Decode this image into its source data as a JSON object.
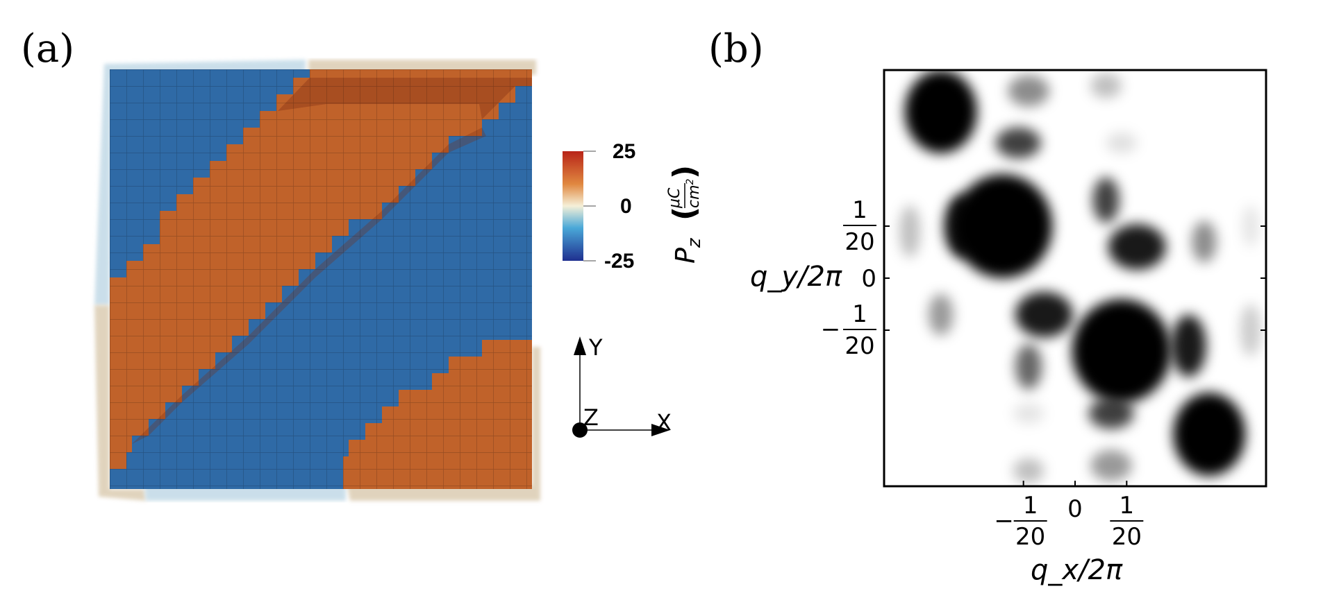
{
  "panel_a": {
    "label": "(a)",
    "colorbar": {
      "max_label": "25",
      "mid_label": "0",
      "min_label": "-25",
      "quantity_label": "P",
      "quantity_sub": "z",
      "unit_num": "μC",
      "unit_den": "cm",
      "unit_den_sup": "2",
      "colors": [
        "#1f2f8f",
        "#4aa8d8",
        "#f5f0d8",
        "#e08840",
        "#b82418"
      ]
    },
    "domain_colors": {
      "up": "#c0622a",
      "down": "#2f6aa6",
      "wall_light": "#d9c9ad",
      "wall_blue": "#b9d4e3"
    },
    "axes_triad": {
      "y": "Y",
      "x": "X",
      "z": "Z"
    }
  },
  "panel_b": {
    "label": "(b)",
    "chart_data": {
      "type": "heatmap",
      "title": "",
      "xlabel": "q_x/2π",
      "ylabel": "q_y/2π",
      "x_ticks": [
        {
          "value": -0.05,
          "num": "1",
          "den": "20",
          "sign": "−"
        },
        {
          "value": 0,
          "text": "0"
        },
        {
          "value": 0.05,
          "num": "1",
          "den": "20",
          "sign": ""
        }
      ],
      "y_ticks": [
        {
          "value": 0.05,
          "num": "1",
          "den": "20",
          "sign": ""
        },
        {
          "value": 0,
          "text": "0"
        },
        {
          "value": -0.05,
          "num": "1",
          "den": "20",
          "sign": "−"
        }
      ],
      "xlim": [
        -0.185,
        0.185
      ],
      "ylim": [
        -0.2,
        0.2
      ],
      "colormap": "gray_r",
      "peaks": [
        {
          "x": -0.13,
          "y": 0.16,
          "intensity": 1.0,
          "rx": 0.035,
          "ry": 0.04
        },
        {
          "x": -0.045,
          "y": 0.18,
          "intensity": 0.45,
          "rx": 0.02,
          "ry": 0.015
        },
        {
          "x": 0.03,
          "y": 0.185,
          "intensity": 0.25,
          "rx": 0.015,
          "ry": 0.012
        },
        {
          "x": -0.055,
          "y": 0.13,
          "intensity": 0.75,
          "rx": 0.022,
          "ry": 0.015
        },
        {
          "x": 0.045,
          "y": 0.13,
          "intensity": 0.12,
          "rx": 0.015,
          "ry": 0.01
        },
        {
          "x": -0.07,
          "y": 0.05,
          "intensity": 1.0,
          "rx": 0.048,
          "ry": 0.05
        },
        {
          "x": -0.11,
          "y": 0.05,
          "intensity": 0.9,
          "rx": 0.017,
          "ry": 0.03
        },
        {
          "x": -0.16,
          "y": 0.045,
          "intensity": 0.25,
          "rx": 0.01,
          "ry": 0.025
        },
        {
          "x": 0.03,
          "y": 0.075,
          "intensity": 0.75,
          "rx": 0.013,
          "ry": 0.022
        },
        {
          "x": 0.06,
          "y": 0.03,
          "intensity": 0.9,
          "rx": 0.028,
          "ry": 0.022
        },
        {
          "x": 0.125,
          "y": 0.035,
          "intensity": 0.45,
          "rx": 0.012,
          "ry": 0.02
        },
        {
          "x": 0.17,
          "y": 0.05,
          "intensity": 0.1,
          "rx": 0.008,
          "ry": 0.02
        },
        {
          "x": -0.03,
          "y": -0.035,
          "intensity": 0.9,
          "rx": 0.028,
          "ry": 0.022
        },
        {
          "x": -0.13,
          "y": -0.035,
          "intensity": 0.4,
          "rx": 0.012,
          "ry": 0.02
        },
        {
          "x": 0.045,
          "y": -0.07,
          "intensity": 1.0,
          "rx": 0.048,
          "ry": 0.05
        },
        {
          "x": 0.11,
          "y": -0.065,
          "intensity": 0.9,
          "rx": 0.017,
          "ry": 0.03
        },
        {
          "x": 0.17,
          "y": -0.05,
          "intensity": 0.2,
          "rx": 0.01,
          "ry": 0.025
        },
        {
          "x": -0.045,
          "y": -0.085,
          "intensity": 0.6,
          "rx": 0.013,
          "ry": 0.022
        },
        {
          "x": -0.045,
          "y": -0.13,
          "intensity": 0.1,
          "rx": 0.015,
          "ry": 0.01
        },
        {
          "x": 0.035,
          "y": -0.13,
          "intensity": 0.75,
          "rx": 0.022,
          "ry": 0.015
        },
        {
          "x": 0.13,
          "y": -0.15,
          "intensity": 1.0,
          "rx": 0.035,
          "ry": 0.04
        },
        {
          "x": -0.045,
          "y": -0.185,
          "intensity": 0.25,
          "rx": 0.015,
          "ry": 0.012
        },
        {
          "x": 0.035,
          "y": -0.18,
          "intensity": 0.4,
          "rx": 0.02,
          "ry": 0.015
        }
      ]
    }
  }
}
